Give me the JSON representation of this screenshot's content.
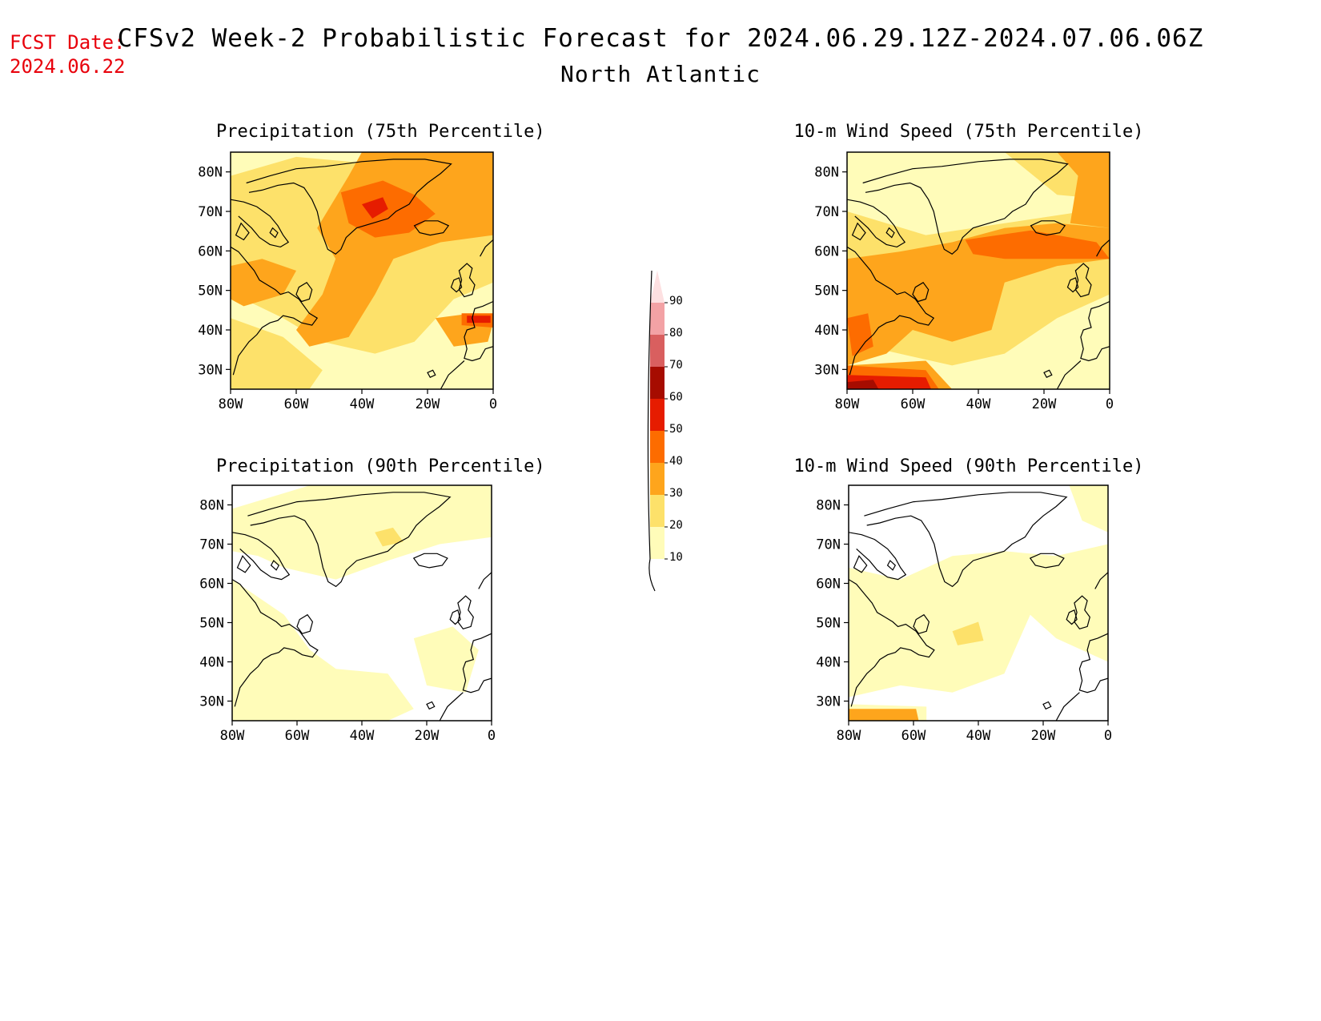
{
  "fcst": {
    "line1": "FCST Date:",
    "line2": "2024.06.22"
  },
  "title": "CFSv2 Week-2 Probabilistic Forecast for 2024.06.29.12Z-2024.07.06.06Z",
  "subtitle": "North Atlantic",
  "colors": {
    "fcst_text": "#e8000b",
    "levels": [
      "#fffcb9",
      "#fde16a",
      "#fea51c",
      "#fd6c00",
      "#e61c00",
      "#a60c00",
      "#d95f5f",
      "#f3a2a5",
      "#fde0e1"
    ]
  },
  "colorbar": {
    "ticks": [
      "10",
      "20",
      "30",
      "40",
      "50",
      "60",
      "70",
      "80",
      "90"
    ]
  },
  "axes": {
    "lat_labels": [
      "80N",
      "70N",
      "60N",
      "50N",
      "40N",
      "30N"
    ],
    "lon_labels": [
      "80W",
      "60W",
      "40W",
      "20W",
      "0"
    ]
  },
  "panels": [
    {
      "id": "precip75",
      "title": "Precipitation (75th Percentile)"
    },
    {
      "id": "wind75",
      "title": "10-m Wind Speed (75th Percentile)"
    },
    {
      "id": "precip90",
      "title": "Precipitation (90th Percentile)"
    },
    {
      "id": "wind90",
      "title": "10-m Wind Speed (90th Percentile)"
    }
  ]
}
